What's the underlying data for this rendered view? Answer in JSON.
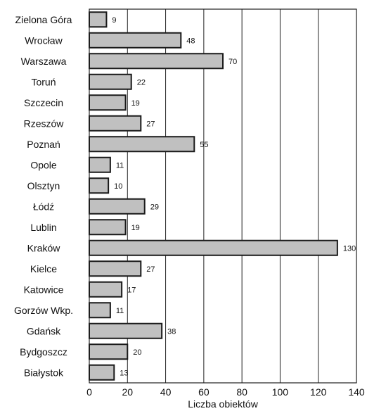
{
  "chart_data": {
    "type": "bar",
    "orientation": "horizontal",
    "categories": [
      "Zielona Góra",
      "Wrocław",
      "Warszawa",
      "Toruń",
      "Szczecin",
      "Rzeszów",
      "Poznań",
      "Opole",
      "Olsztyn",
      "Łódź",
      "Lublin",
      "Kraków",
      "Kielce",
      "Katowice",
      "Gorzów Wkp.",
      "Gdańsk",
      "Bydgoszcz",
      "Białystok"
    ],
    "values": [
      9,
      48,
      70,
      22,
      19,
      27,
      55,
      11,
      10,
      29,
      19,
      130,
      27,
      17,
      11,
      38,
      20,
      13
    ],
    "value_labels": [
      "9",
      "48",
      "70",
      "22",
      "19",
      "27",
      "55",
      "11",
      "10",
      "29",
      "19",
      "130",
      "27",
      "17",
      "11",
      "38",
      "20",
      "13"
    ],
    "xlabel": "Liczba obiektów",
    "xlim": [
      0,
      140
    ],
    "xticks": [
      "0",
      "20",
      "40",
      "60",
      "80",
      "100",
      "120",
      "140"
    ],
    "grid": "vertical",
    "colors": {
      "bar_fill": "#c0c0c0",
      "bar_stroke": "#1a1a1a",
      "grid": "#222222",
      "frame": "#222222"
    }
  }
}
